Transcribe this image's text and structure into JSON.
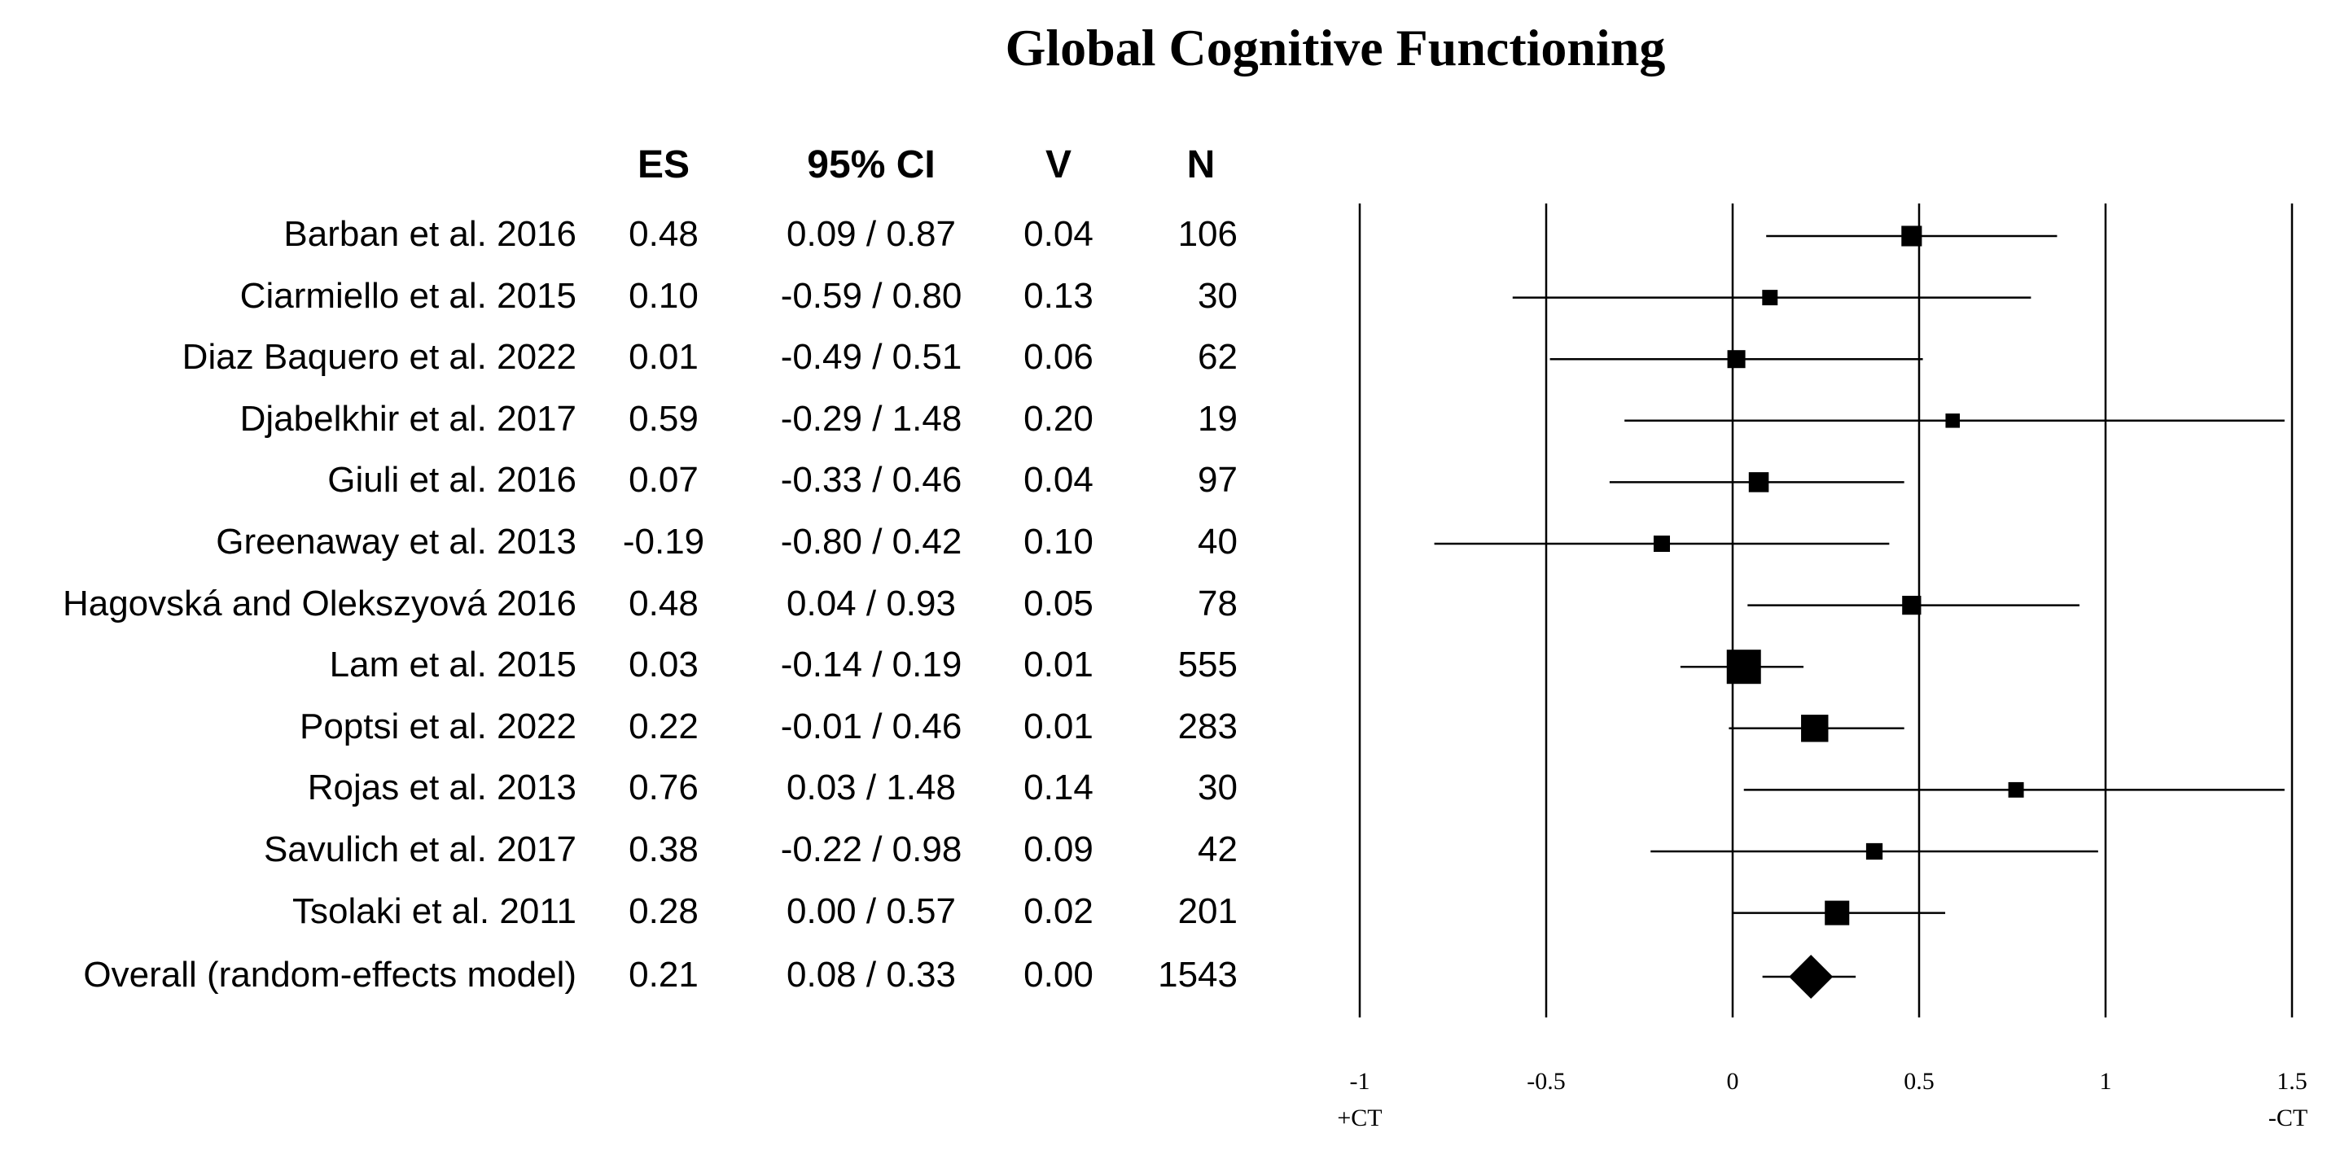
{
  "chart_data": {
    "type": "forest",
    "title": "Global Cognitive Functioning",
    "columns": {
      "study": "",
      "es": "ES",
      "ci": "95% CI",
      "v": "V",
      "n": "N"
    },
    "studies": [
      {
        "name": "Barban et al. 2016",
        "es": 0.48,
        "lo": 0.09,
        "hi": 0.87,
        "es_text": "0.48",
        "ci_text": "0.09 / 0.87",
        "v_text": "0.04",
        "n_text": "106",
        "n": 106
      },
      {
        "name": "Ciarmiello et al. 2015",
        "es": 0.1,
        "lo": -0.59,
        "hi": 0.8,
        "es_text": "0.10",
        "ci_text": "-0.59 / 0.80",
        "v_text": "0.13",
        "n_text": "30",
        "n": 30
      },
      {
        "name": "Diaz Baquero et al. 2022",
        "es": 0.01,
        "lo": -0.49,
        "hi": 0.51,
        "es_text": "0.01",
        "ci_text": "-0.49 / 0.51",
        "v_text": "0.06",
        "n_text": "62",
        "n": 62
      },
      {
        "name": "Djabelkhir et al.  2017",
        "es": 0.59,
        "lo": -0.29,
        "hi": 1.48,
        "es_text": "0.59",
        "ci_text": "-0.29 / 1.48",
        "v_text": "0.20",
        "n_text": "19",
        "n": 19
      },
      {
        "name": "Giuli et al. 2016",
        "es": 0.07,
        "lo": -0.33,
        "hi": 0.46,
        "es_text": "0.07",
        "ci_text": "-0.33 / 0.46",
        "v_text": "0.04",
        "n_text": "97",
        "n": 97
      },
      {
        "name": "Greenaway et al. 2013",
        "es": -0.19,
        "lo": -0.8,
        "hi": 0.42,
        "es_text": "-0.19",
        "ci_text": "-0.80 / 0.42",
        "v_text": "0.10",
        "n_text": "40",
        "n": 40
      },
      {
        "name": "Hagovská and Olekszyová 2016",
        "es": 0.48,
        "lo": 0.04,
        "hi": 0.93,
        "es_text": "0.48",
        "ci_text": "0.04 / 0.93",
        "v_text": "0.05",
        "n_text": "78",
        "n": 78
      },
      {
        "name": "Lam et al. 2015",
        "es": 0.03,
        "lo": -0.14,
        "hi": 0.19,
        "es_text": "0.03",
        "ci_text": "-0.14 / 0.19",
        "v_text": "0.01",
        "n_text": "555",
        "n": 555
      },
      {
        "name": "Poptsi et al. 2022",
        "es": 0.22,
        "lo": -0.01,
        "hi": 0.46,
        "es_text": "0.22",
        "ci_text": "-0.01 / 0.46",
        "v_text": "0.01",
        "n_text": "283",
        "n": 283
      },
      {
        "name": "Rojas et al. 2013",
        "es": 0.76,
        "lo": 0.03,
        "hi": 1.48,
        "es_text": "0.76",
        "ci_text": "0.03 / 1.48",
        "v_text": "0.14",
        "n_text": "30",
        "n": 30
      },
      {
        "name": "Savulich et al.  2017",
        "es": 0.38,
        "lo": -0.22,
        "hi": 0.98,
        "es_text": "0.38",
        "ci_text": "-0.22 / 0.98",
        "v_text": "0.09",
        "n_text": "42",
        "n": 42
      },
      {
        "name": "Tsolaki et al.  2011",
        "es": 0.28,
        "lo": 0.0,
        "hi": 0.57,
        "es_text": "0.28",
        "ci_text": "0.00 / 0.57",
        "v_text": "0.02",
        "n_text": "201",
        "n": 201
      }
    ],
    "overall": {
      "name": "Overall (random-effects model)",
      "es": 0.21,
      "lo": 0.08,
      "hi": 0.33,
      "es_text": "0.21",
      "ci_text": "0.08 / 0.33",
      "v_text": "0.00",
      "n_text": "1543"
    },
    "xlim": [
      -1,
      1.5
    ],
    "xticks": [
      {
        "value": -1,
        "label": "-1"
      },
      {
        "value": -0.5,
        "label": "-0.5"
      },
      {
        "value": 0,
        "label": "0"
      },
      {
        "value": 0.5,
        "label": "0.5"
      },
      {
        "value": 1,
        "label": "1"
      },
      {
        "value": 1.5,
        "label": "1.5"
      }
    ],
    "left_label": "+CT",
    "right_label": "-CT"
  }
}
